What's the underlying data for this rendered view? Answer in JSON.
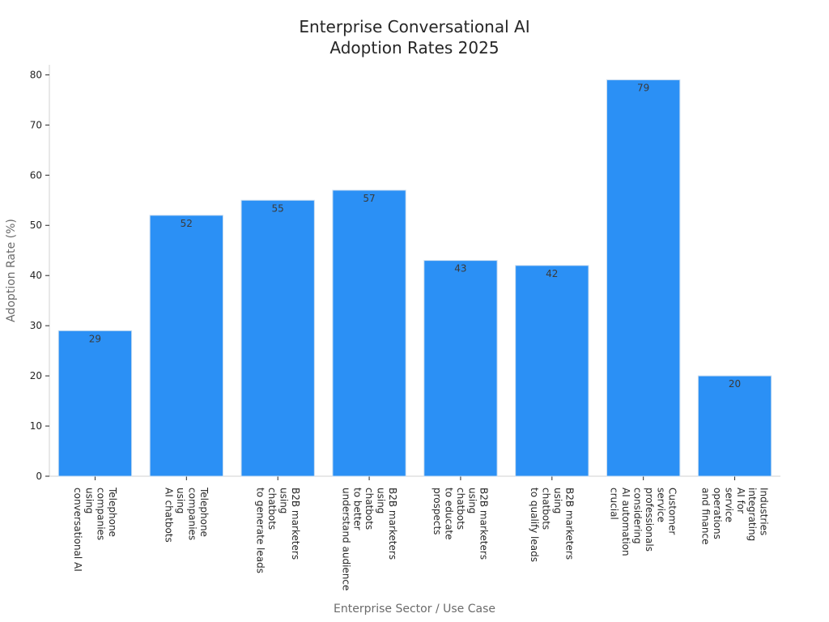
{
  "chart_data": {
    "type": "bar",
    "title": [
      "Enterprise Conversational AI",
      "Adoption Rates 2025"
    ],
    "xlabel": "Enterprise Sector / Use Case",
    "ylabel": "Adoption Rate (%)",
    "ylim": [
      0,
      82
    ],
    "yticks": [
      "0",
      "10",
      "20",
      "30",
      "40",
      "50",
      "60",
      "70",
      "80"
    ],
    "grid": false,
    "bar_color": "#2b90f5",
    "categories": [
      [
        "Telephone",
        "companies",
        "using",
        "conversational AI"
      ],
      [
        "Telephone",
        "companies",
        "using",
        "AI chatbots"
      ],
      [
        "B2B marketers",
        "using",
        "chatbots",
        "to generate leads"
      ],
      [
        "B2B marketers",
        "using",
        "chatbots",
        "to better",
        "understand audience"
      ],
      [
        "B2B marketers",
        "using",
        "chatbots",
        "to educate",
        "prospects"
      ],
      [
        "B2B marketers",
        "using",
        "chatbots",
        "to qualify leads"
      ],
      [
        "Customer",
        "service",
        "professionals",
        "considering",
        "AI automation",
        "crucial"
      ],
      [
        "Industries",
        "integrating",
        "AI for",
        "service",
        "operations",
        "and finance"
      ]
    ],
    "values": [
      29,
      52,
      55,
      57,
      43,
      42,
      79,
      20
    ],
    "data_labels": [
      "29",
      "52",
      "55",
      "57",
      "43",
      "42",
      "79",
      "20"
    ]
  }
}
